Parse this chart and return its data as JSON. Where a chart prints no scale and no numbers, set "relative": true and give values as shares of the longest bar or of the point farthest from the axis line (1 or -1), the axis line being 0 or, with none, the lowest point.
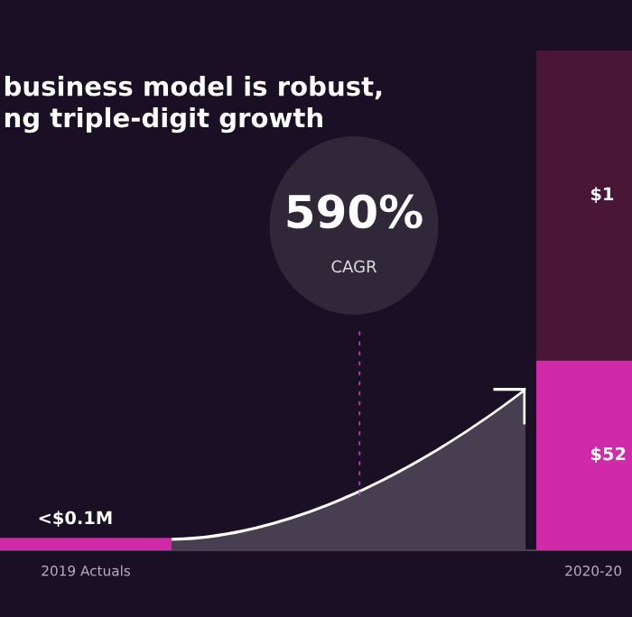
{
  "chart_data": {
    "type": "bar",
    "title": "business model is robust,\nng triple-digit growth",
    "categories": [
      "2019 Actuals",
      "2020-20"
    ],
    "relative": true,
    "stacked": true,
    "series": [
      {
        "color": "#d02aa8",
        "values": [
          0.025,
          0.38
        ]
      },
      {
        "color": "#4a1636",
        "values": [
          null,
          0.62
        ]
      }
    ],
    "annotations": [
      "590%",
      "CAGR",
      "<$0.1M",
      "$52",
      "$1"
    ],
    "grid": false,
    "legend": false
  }
}
